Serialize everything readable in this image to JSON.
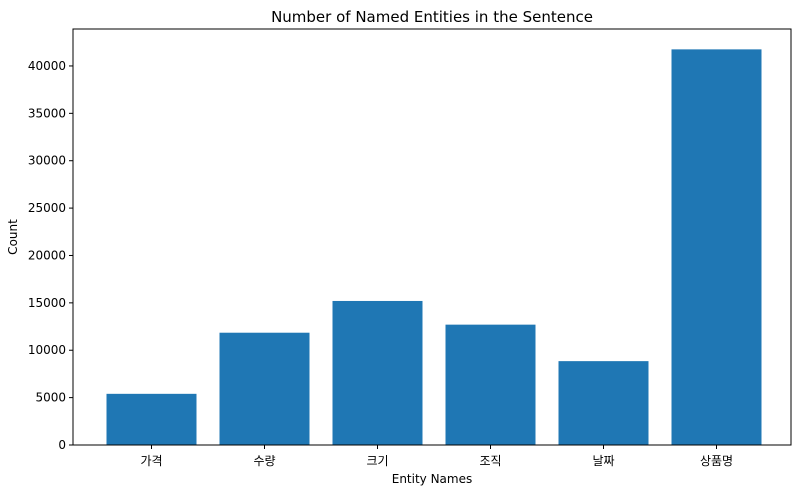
{
  "chart_data": {
    "type": "bar",
    "title": "Number of Named Entities in the Sentence",
    "xlabel": "Entity Names",
    "ylabel": "Count",
    "categories": [
      "가격",
      "수량",
      "크기",
      "조직",
      "날짜",
      "상품명"
    ],
    "values": [
      5400,
      11850,
      15200,
      12700,
      8850,
      41750
    ],
    "ylim": [
      0,
      43900
    ],
    "yticks": [
      0,
      5000,
      10000,
      15000,
      20000,
      25000,
      30000,
      35000,
      40000
    ],
    "ytick_labels": [
      "0",
      "5000",
      "10000",
      "15000",
      "20000",
      "25000",
      "30000",
      "35000",
      "40000"
    ],
    "bar_color": "#1f77b4",
    "grid": false,
    "legend": "none"
  }
}
